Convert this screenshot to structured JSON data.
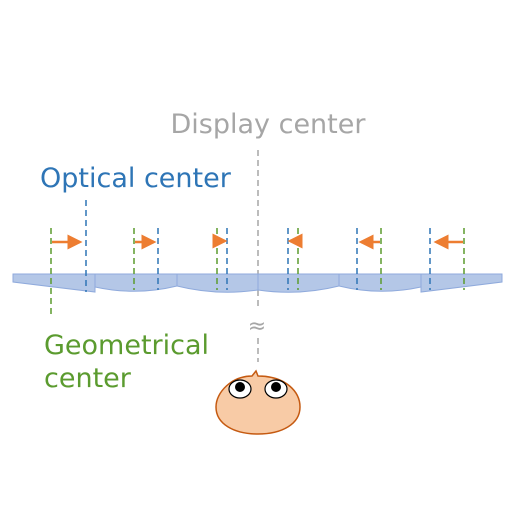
{
  "labels": {
    "display_center": "Display center",
    "optical_center": "Optical center",
    "geometrical_center_line1": "Geometrical",
    "geometrical_center_line2": "center",
    "approx_symbol": "≈"
  },
  "colors": {
    "display_center": "#a6a6a6",
    "optical_center": "#2e75b6",
    "geometrical_center": "#5b9b2f",
    "arrow": "#ed7d31",
    "lens_fill": "#b4c7e7",
    "lens_stroke": "#8faadc",
    "face_fill": "#f8cba6",
    "face_stroke": "#c55a11"
  },
  "lens_segments": [
    {
      "geometrical_line": "green",
      "optical_line": "blue",
      "shift_direction": "right"
    },
    {
      "geometrical_line": "green",
      "optical_line": "blue",
      "shift_direction": "right"
    },
    {
      "geometrical_line": "green",
      "optical_line": "blue",
      "shift_direction": "right"
    },
    {
      "geometrical_line": "green",
      "optical_line": "blue",
      "shift_direction": "left"
    },
    {
      "geometrical_line": "green",
      "optical_line": "blue",
      "shift_direction": "left"
    },
    {
      "geometrical_line": "green",
      "optical_line": "blue",
      "shift_direction": "left"
    }
  ],
  "icons": {
    "viewer": "viewer-face-icon"
  }
}
